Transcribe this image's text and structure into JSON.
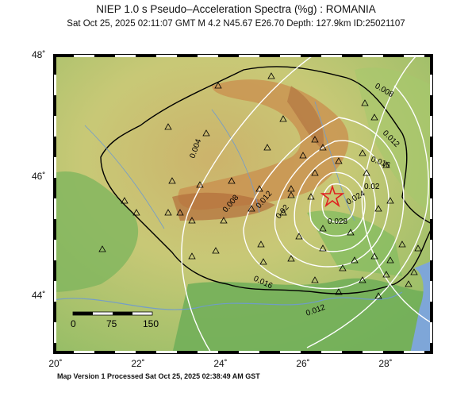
{
  "header": {
    "title": "NIEP 1.0 s Pseudo–Acceleration Spectra (%g) : ROMANIA",
    "subtitle": "Sat Oct 25, 2025 02:11:07 GMT   M 4.2   N45.67 E26.70   Depth: 127.9km   ID:25021107"
  },
  "axes": {
    "lat_labels": [
      "48˚",
      "46˚",
      "44˚"
    ],
    "lon_labels": [
      "20˚",
      "22˚",
      "24˚",
      "26˚",
      "28˚"
    ]
  },
  "contours": {
    "labels": [
      "0.004",
      "0.008",
      "0.012",
      "0.016",
      "0.02",
      "0.024",
      "0.028",
      "0.02",
      "0.016",
      "0.012",
      "0.008",
      "0.012",
      "0.016",
      "0.02",
      "0.024",
      "0.028"
    ],
    "color": "#ffffff"
  },
  "scale_bar": {
    "labels": [
      "0",
      "75",
      "150"
    ]
  },
  "epicenter": {
    "lat": 45.67,
    "lon": 26.7,
    "icon": "star-icon",
    "color": "#e02020"
  },
  "stations": {
    "icon": "triangle-icon"
  },
  "footer": {
    "text": "Map Version 1 Processed Sat Oct 25, 2025 02:38:49 AM GST"
  }
}
